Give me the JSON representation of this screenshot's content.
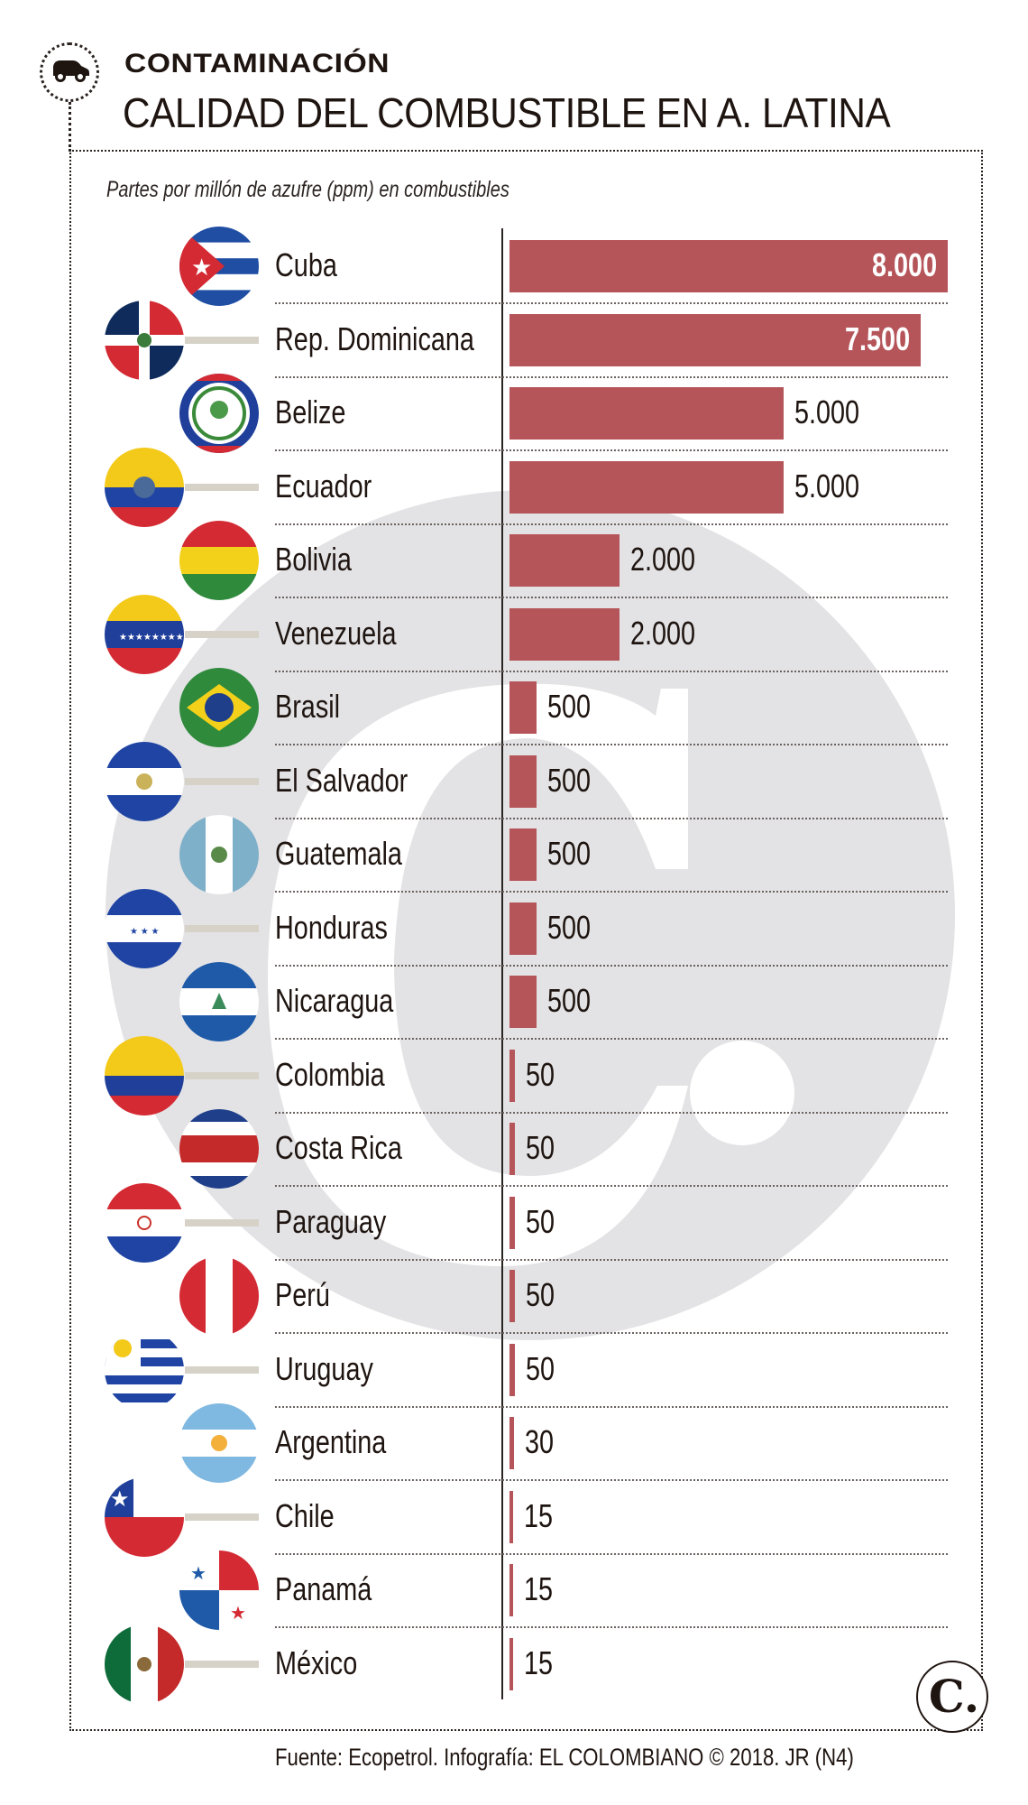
{
  "header": {
    "kicker": "CONTAMINACIÓN",
    "title": "CALIDAD DEL COMBUSTIBLE EN A. LATINA",
    "subtitle": "Partes por millón de azufre (ppm) en combustibles",
    "icon": "car-icon"
  },
  "colors": {
    "bar": "#b5555a",
    "text": "#1e1410",
    "watermark": "#e3e3e5",
    "connector": "#d6d2c8"
  },
  "rows": [
    {
      "country": "Cuba",
      "value_label": "8.000",
      "flag": "cuba-flag-icon"
    },
    {
      "country": "Rep. Dominicana",
      "value_label": "7.500",
      "flag": "dominican-republic-flag-icon"
    },
    {
      "country": "Belize",
      "value_label": "5.000",
      "flag": "belize-flag-icon"
    },
    {
      "country": "Ecuador",
      "value_label": "5.000",
      "flag": "ecuador-flag-icon"
    },
    {
      "country": "Bolivia",
      "value_label": "2.000",
      "flag": "bolivia-flag-icon"
    },
    {
      "country": "Venezuela",
      "value_label": "2.000",
      "flag": "venezuela-flag-icon"
    },
    {
      "country": "Brasil",
      "value_label": "500",
      "flag": "brazil-flag-icon"
    },
    {
      "country": "El Salvador",
      "value_label": "500",
      "flag": "el-salvador-flag-icon"
    },
    {
      "country": "Guatemala",
      "value_label": "500",
      "flag": "guatemala-flag-icon"
    },
    {
      "country": "Honduras",
      "value_label": "500",
      "flag": "honduras-flag-icon"
    },
    {
      "country": "Nicaragua",
      "value_label": "500",
      "flag": "nicaragua-flag-icon"
    },
    {
      "country": "Colombia",
      "value_label": "50",
      "flag": "colombia-flag-icon"
    },
    {
      "country": "Costa Rica",
      "value_label": "50",
      "flag": "costa-rica-flag-icon"
    },
    {
      "country": "Paraguay",
      "value_label": "50",
      "flag": "paraguay-flag-icon"
    },
    {
      "country": "Perú",
      "value_label": "50",
      "flag": "peru-flag-icon"
    },
    {
      "country": "Uruguay",
      "value_label": "50",
      "flag": "uruguay-flag-icon"
    },
    {
      "country": "Argentina",
      "value_label": "30",
      "flag": "argentina-flag-icon"
    },
    {
      "country": "Chile",
      "value_label": "15",
      "flag": "chile-flag-icon"
    },
    {
      "country": "Panamá",
      "value_label": "15",
      "flag": "panama-flag-icon"
    },
    {
      "country": "México",
      "value_label": "15",
      "flag": "mexico-flag-icon"
    }
  ],
  "footer": {
    "source": "Fuente: Ecopetrol. Infografía: EL COLOMBIANO © 2018. JR (N4)",
    "logo_letter": "C."
  },
  "chart_data": {
    "type": "bar",
    "orientation": "horizontal",
    "title": "CALIDAD DEL COMBUSTIBLE EN A. LATINA",
    "subtitle": "Partes por millón de azufre (ppm) en combustibles",
    "xlabel": "",
    "ylabel": "",
    "categories": [
      "Cuba",
      "Rep. Dominicana",
      "Belize",
      "Ecuador",
      "Bolivia",
      "Venezuela",
      "Brasil",
      "El Salvador",
      "Guatemala",
      "Honduras",
      "Nicaragua",
      "Colombia",
      "Costa Rica",
      "Paraguay",
      "Perú",
      "Uruguay",
      "Argentina",
      "Chile",
      "Panamá",
      "México"
    ],
    "values": [
      8000,
      7500,
      5000,
      5000,
      2000,
      2000,
      500,
      500,
      500,
      500,
      500,
      50,
      50,
      50,
      50,
      50,
      30,
      15,
      15,
      15
    ],
    "value_labels": [
      "8.000",
      "7.500",
      "5.000",
      "5.000",
      "2.000",
      "2.000",
      "500",
      "500",
      "500",
      "500",
      "500",
      "50",
      "50",
      "50",
      "50",
      "50",
      "30",
      "15",
      "15",
      "15"
    ],
    "units": "ppm",
    "xlim": [
      0,
      8000
    ],
    "grid": false,
    "legend": null,
    "source": "Fuente: Ecopetrol. Infografía: EL COLOMBIANO © 2018. JR (N4)"
  }
}
